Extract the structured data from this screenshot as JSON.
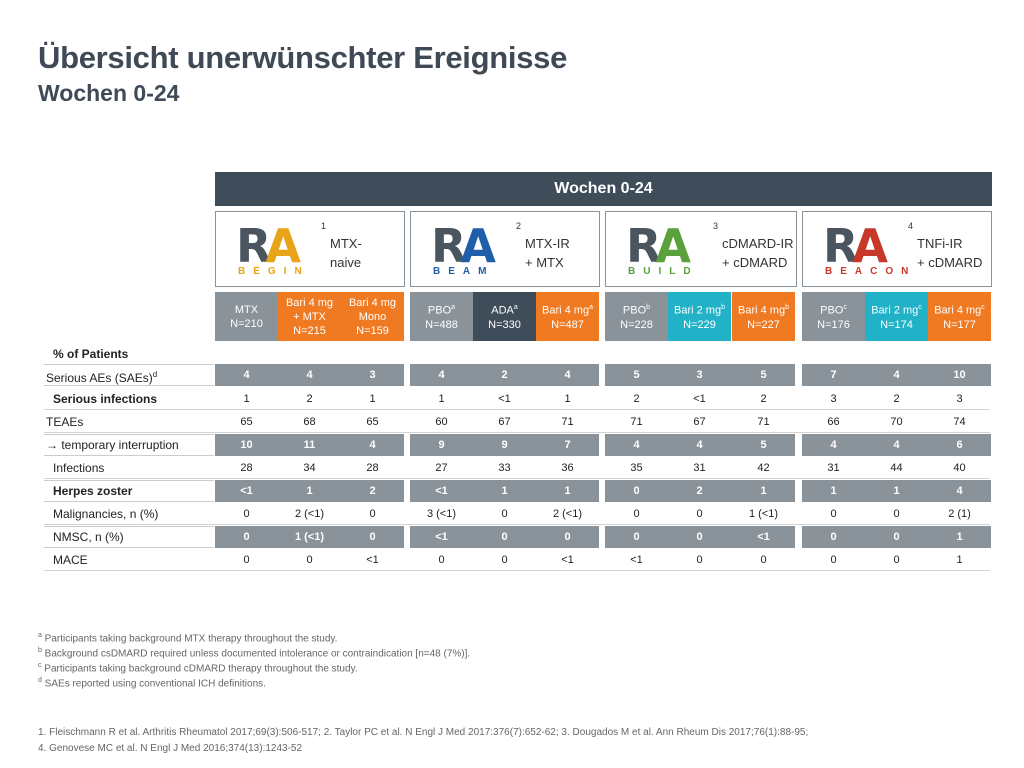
{
  "title": "Übersicht unerwünschter Ereignisse",
  "subtitle": "Wochen 0-24",
  "header_bar": "Wochen 0-24",
  "studies": [
    {
      "num": "1",
      "logo_word": "BEGIN",
      "desc": "MTX-\nnaive",
      "color": "#e8a317"
    },
    {
      "num": "2",
      "logo_word": "BEAM",
      "desc": "MTX-IR\n+ MTX",
      "color": "#1f5ea8"
    },
    {
      "num": "3",
      "logo_word": "BUILD",
      "desc": "cDMARD-IR\n+ cDMARD",
      "color": "#5aa03c"
    },
    {
      "num": "4",
      "logo_word": "BEACON",
      "desc": "TNFi-IR\n+ cDMARD",
      "color": "#c8382a"
    }
  ],
  "arms": [
    {
      "l1": "MTX",
      "sup": "",
      "l2": "N=210",
      "color": "gray"
    },
    {
      "l1": "Bari 4 mg",
      "sup": "",
      "l2": "+ MTX",
      "l3": "N=215",
      "color": "orange"
    },
    {
      "l1": "Bari 4 mg",
      "sup": "",
      "l2": "Mono",
      "l3": "N=159",
      "color": "orange"
    },
    {
      "l1": "PBO",
      "sup": "a",
      "l2": "N=488",
      "color": "gray"
    },
    {
      "l1": "ADA",
      "sup": "a",
      "l2": "N=330",
      "color": "navy"
    },
    {
      "l1": "Bari 4 mg",
      "sup": "a",
      "l2": "N=487",
      "color": "orange"
    },
    {
      "l1": "PBO",
      "sup": "b",
      "l2": "N=228",
      "color": "gray"
    },
    {
      "l1": "Bari 2 mg",
      "sup": "b",
      "l2": "N=229",
      "color": "cyan"
    },
    {
      "l1": "Bari 4 mg",
      "sup": "b",
      "l2": "N=227",
      "color": "orange"
    },
    {
      "l1": "PBO",
      "sup": "c",
      "l2": "N=176",
      "color": "gray"
    },
    {
      "l1": "Bari 2 mg",
      "sup": "c",
      "l2": "N=174",
      "color": "cyan"
    },
    {
      "l1": "Bari 4 mg",
      "sup": "c",
      "l2": "N=177",
      "color": "orange"
    }
  ],
  "pct_label": "% of Patients",
  "rows": [
    {
      "label": "Serious AEs (SAEs)",
      "sup": "d",
      "bold": false,
      "indent": 0,
      "shaded": true,
      "values": [
        "4",
        "4",
        "3",
        "4",
        "2",
        "4",
        "5",
        "3",
        "5",
        "7",
        "4",
        "10"
      ]
    },
    {
      "label": "Serious infections",
      "sup": "",
      "bold": true,
      "indent": 1,
      "shaded": false,
      "values": [
        "1",
        "2",
        "1",
        "1",
        "<1",
        "1",
        "2",
        "<1",
        "2",
        "3",
        "2",
        "3"
      ]
    },
    {
      "label": "TEAEs",
      "sup": "",
      "bold": false,
      "indent": 0,
      "shaded": false,
      "values": [
        "65",
        "68",
        "65",
        "60",
        "67",
        "71",
        "71",
        "67",
        "71",
        "66",
        "70",
        "74"
      ]
    },
    {
      "label": "→ temporary interruption",
      "sup": "",
      "bold": false,
      "indent": 2,
      "shaded": true,
      "values": [
        "10",
        "11",
        "4",
        "9",
        "9",
        "7",
        "4",
        "4",
        "5",
        "4",
        "4",
        "6"
      ]
    },
    {
      "label": "Infections",
      "sup": "",
      "bold": false,
      "indent": 1,
      "shaded": false,
      "values": [
        "28",
        "34",
        "28",
        "27",
        "33",
        "36",
        "35",
        "31",
        "42",
        "31",
        "44",
        "40"
      ]
    },
    {
      "label": "Herpes zoster",
      "sup": "",
      "bold": true,
      "indent": 3,
      "shaded": true,
      "values": [
        "<1",
        "1",
        "2",
        "<1",
        "1",
        "1",
        "0",
        "2",
        "1",
        "1",
        "1",
        "4"
      ]
    },
    {
      "label": "Malignancies, n (%)",
      "sup": "",
      "bold": false,
      "indent": 1,
      "shaded": false,
      "values": [
        "0",
        "2 (<1)",
        "0",
        "3 (<1)",
        "0",
        "2 (<1)",
        "0",
        "0",
        "1 (<1)",
        "0",
        "0",
        "2 (1)"
      ]
    },
    {
      "label": "NMSC, n (%)",
      "sup": "",
      "bold": false,
      "indent": 3,
      "shaded": true,
      "values": [
        "0",
        "1 (<1)",
        "0",
        "<1",
        "0",
        "0",
        "0",
        "0",
        "<1",
        "0",
        "0",
        "1"
      ]
    },
    {
      "label": "MACE",
      "sup": "",
      "bold": false,
      "indent": 1,
      "shaded": false,
      "values": [
        "0",
        "0",
        "<1",
        "0",
        "0",
        "<1",
        "<1",
        "0",
        "0",
        "0",
        "0",
        "1"
      ]
    }
  ],
  "footnotes": [
    {
      "sup": "a",
      "text": "Participants taking background MTX therapy throughout the study."
    },
    {
      "sup": "b",
      "text": "Background csDMARD required unless documented intolerance or contraindication [n=48 (7%)]."
    },
    {
      "sup": "c",
      "text": "Participants taking background cDMARD therapy throughout the study."
    },
    {
      "sup": "d",
      "text": "SAEs reported using conventional ICH definitions."
    }
  ],
  "references": [
    "1. Fleischmann R et al. Arthritis Rheumatol 2017;69(3):506-517; 2. Taylor PC et al. N Engl J Med 2017:376(7):652-62; 3. Dougados M et al. Ann Rheum Dis 2017;76(1):88-95;",
    "4. Genovese MC et al. N Engl J Med 2016;374(13):1243-52"
  ]
}
